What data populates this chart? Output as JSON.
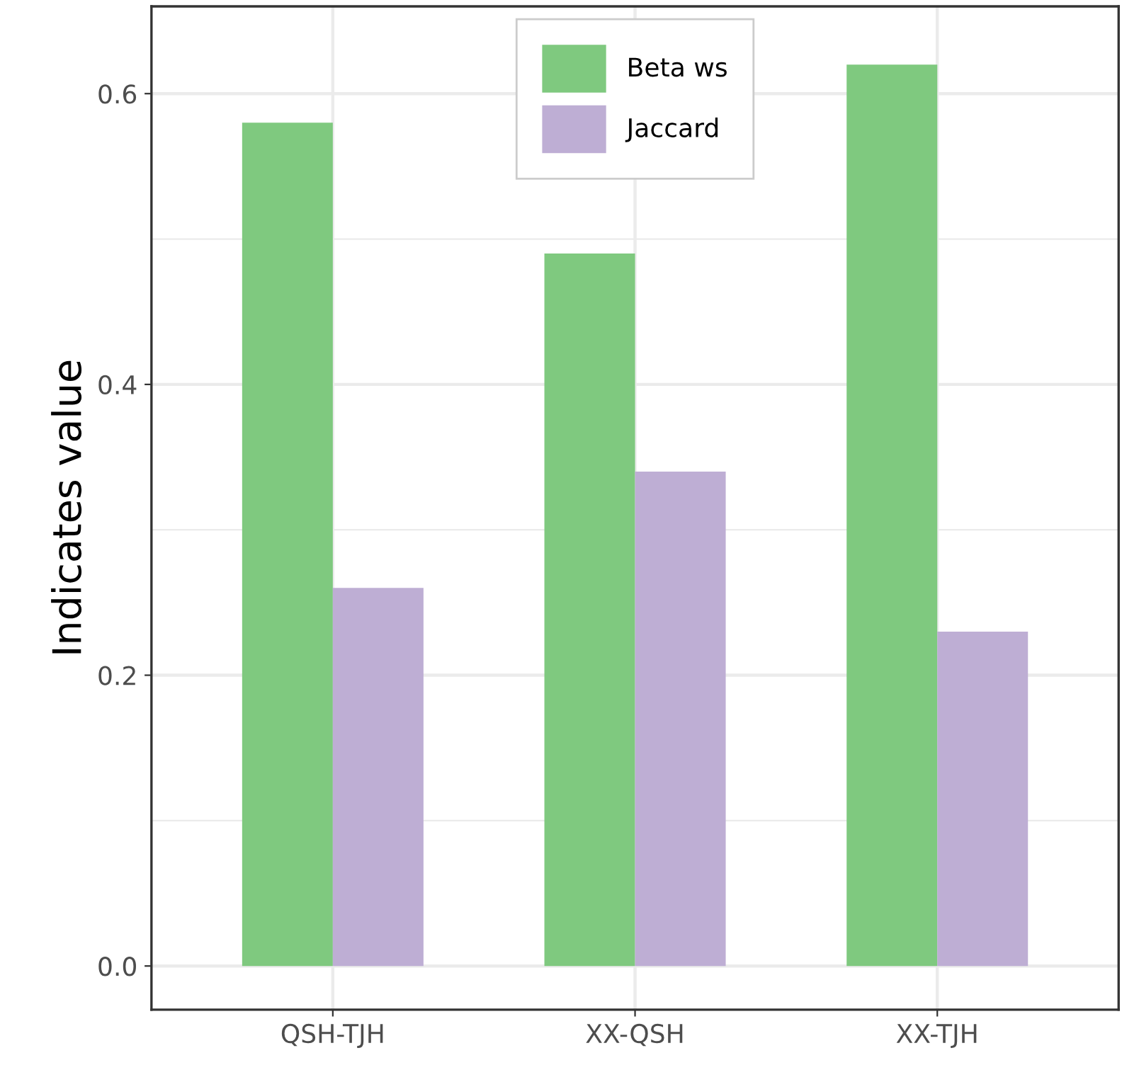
{
  "chart_data": {
    "type": "bar",
    "ylabel": "Indicates value",
    "categories": [
      "QSH-TJH",
      "XX-QSH",
      "XX-TJH"
    ],
    "series": [
      {
        "name": "Beta ws",
        "color": "#7fc97f",
        "values": [
          0.58,
          0.49,
          0.62
        ]
      },
      {
        "name": "Jaccard",
        "color": "#beaed4",
        "values": [
          0.26,
          0.34,
          0.23
        ]
      }
    ],
    "ylim": [
      -0.03,
      0.66
    ],
    "yticks": [
      {
        "value": 0,
        "label": "0.0"
      },
      {
        "value": 0.2,
        "label": "0.2"
      },
      {
        "value": 0.4,
        "label": "0.4"
      },
      {
        "value": 0.6,
        "label": "0.6"
      }
    ],
    "grid": true,
    "legend": "top"
  }
}
